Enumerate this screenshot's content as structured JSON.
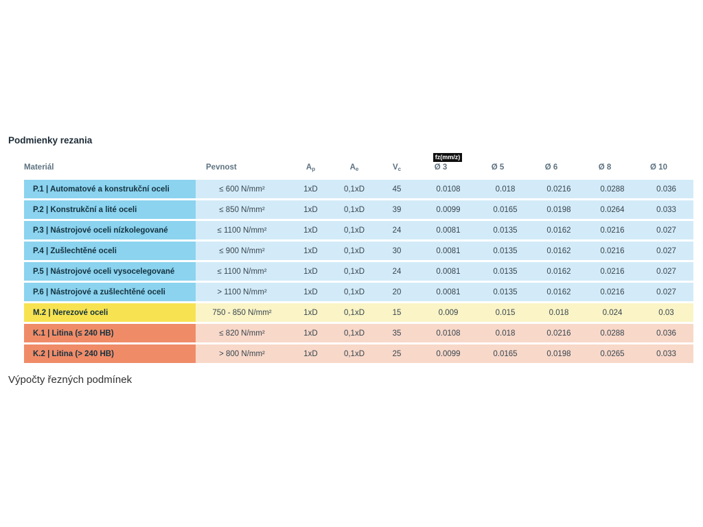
{
  "page": {
    "title": "Podmienky rezania",
    "footer": "Výpočty řezných podmínek"
  },
  "table": {
    "fz_badge": "fz(mm/z)",
    "headers": {
      "material": "Materiál",
      "pevnost": "Pevnost",
      "ap": {
        "base": "A",
        "sub": "p"
      },
      "ae": {
        "base": "A",
        "sub": "e"
      },
      "vc": {
        "base": "V",
        "sub": "c"
      },
      "d3": "Ø 3",
      "d5": "Ø 5",
      "d6": "Ø 6",
      "d8": "Ø 8",
      "d10": "Ø 10"
    },
    "colors": {
      "blue_label": "#8BD3EF",
      "blue_cell": "#D3EBF8",
      "yellow_label": "#F7E351",
      "yellow_cell": "#FAF4C6",
      "orange_label": "#F08B68",
      "orange_cell": "#F8D8C9"
    },
    "rows": [
      {
        "group": "blue",
        "material": "P.1 | Automatové a konstrukční oceli",
        "pevnost": "≤ 600 N/mm²",
        "ap": "1xD",
        "ae": "0,1xD",
        "vc": "45",
        "d3": "0.0108",
        "d5": "0.018",
        "d6": "0.0216",
        "d8": "0.0288",
        "d10": "0.036"
      },
      {
        "group": "blue",
        "material": "P.2 | Konstrukční a lité oceli",
        "pevnost": "≤ 850 N/mm²",
        "ap": "1xD",
        "ae": "0,1xD",
        "vc": "39",
        "d3": "0.0099",
        "d5": "0.0165",
        "d6": "0.0198",
        "d8": "0.0264",
        "d10": "0.033"
      },
      {
        "group": "blue",
        "material": "P.3 | Nástrojové oceli nízkolegované",
        "pevnost": "≤ 1100 N/mm²",
        "ap": "1xD",
        "ae": "0,1xD",
        "vc": "24",
        "d3": "0.0081",
        "d5": "0.0135",
        "d6": "0.0162",
        "d8": "0.0216",
        "d10": "0.027"
      },
      {
        "group": "blue",
        "material": "P.4 | Zušlechtěné oceli",
        "pevnost": "≤ 900 N/mm²",
        "ap": "1xD",
        "ae": "0,1xD",
        "vc": "30",
        "d3": "0.0081",
        "d5": "0.0135",
        "d6": "0.0162",
        "d8": "0.0216",
        "d10": "0.027"
      },
      {
        "group": "blue",
        "material": "P.5 | Nástrojové oceli vysocelegované",
        "pevnost": "≤ 1100 N/mm²",
        "ap": "1xD",
        "ae": "0,1xD",
        "vc": "24",
        "d3": "0.0081",
        "d5": "0.0135",
        "d6": "0.0162",
        "d8": "0.0216",
        "d10": "0.027"
      },
      {
        "group": "blue",
        "material": "P.6 | Nástrojové a zušlechtěné oceli",
        "pevnost": "> 1100 N/mm²",
        "ap": "1xD",
        "ae": "0,1xD",
        "vc": "20",
        "d3": "0.0081",
        "d5": "0.0135",
        "d6": "0.0162",
        "d8": "0.0216",
        "d10": "0.027"
      },
      {
        "group": "yellow",
        "material": "M.2 | Nerezové oceli",
        "pevnost": "750 - 850 N/mm²",
        "ap": "1xD",
        "ae": "0,1xD",
        "vc": "15",
        "d3": "0.009",
        "d5": "0.015",
        "d6": "0.018",
        "d8": "0.024",
        "d10": "0.03"
      },
      {
        "group": "orange",
        "material": "K.1 | Litina (≤ 240 HB)",
        "pevnost": "≤ 820 N/mm²",
        "ap": "1xD",
        "ae": "0,1xD",
        "vc": "35",
        "d3": "0.0108",
        "d5": "0.018",
        "d6": "0.0216",
        "d8": "0.0288",
        "d10": "0.036"
      },
      {
        "group": "orange",
        "material": "K.2 | Litina (> 240 HB)",
        "pevnost": "> 800 N/mm²",
        "ap": "1xD",
        "ae": "0,1xD",
        "vc": "25",
        "d3": "0.0099",
        "d5": "0.0165",
        "d6": "0.0198",
        "d8": "0.0265",
        "d10": "0.033"
      }
    ]
  }
}
